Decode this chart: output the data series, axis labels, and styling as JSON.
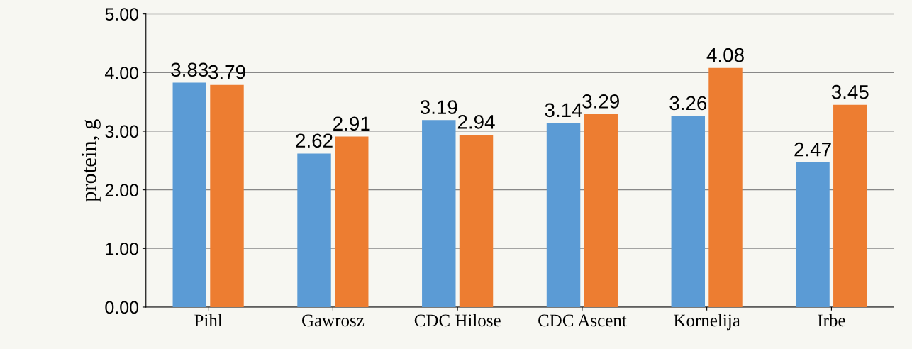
{
  "chart_data": {
    "type": "bar",
    "ylabel": "protein, g",
    "categories": [
      "Pihl",
      "Gawrosz",
      "CDC Hilose",
      "CDC Ascent",
      "Kornelija",
      "Irbe"
    ],
    "series": [
      {
        "color": "#5b9bd5",
        "values": [
          3.83,
          2.62,
          3.19,
          3.14,
          3.26,
          2.47
        ]
      },
      {
        "color": "#ed7d31",
        "values": [
          3.79,
          2.91,
          2.94,
          3.29,
          4.08,
          3.45
        ]
      }
    ],
    "ylim": [
      0,
      5
    ],
    "yticks": [
      {
        "value": 0,
        "label": "0.00"
      },
      {
        "value": 1,
        "label": "1.00"
      },
      {
        "value": 2,
        "label": "2.00"
      },
      {
        "value": 3,
        "label": "3.00"
      },
      {
        "value": 4,
        "label": "4.00"
      },
      {
        "value": 5,
        "label": "5.00"
      }
    ],
    "grid": "y",
    "data_labels": true
  }
}
